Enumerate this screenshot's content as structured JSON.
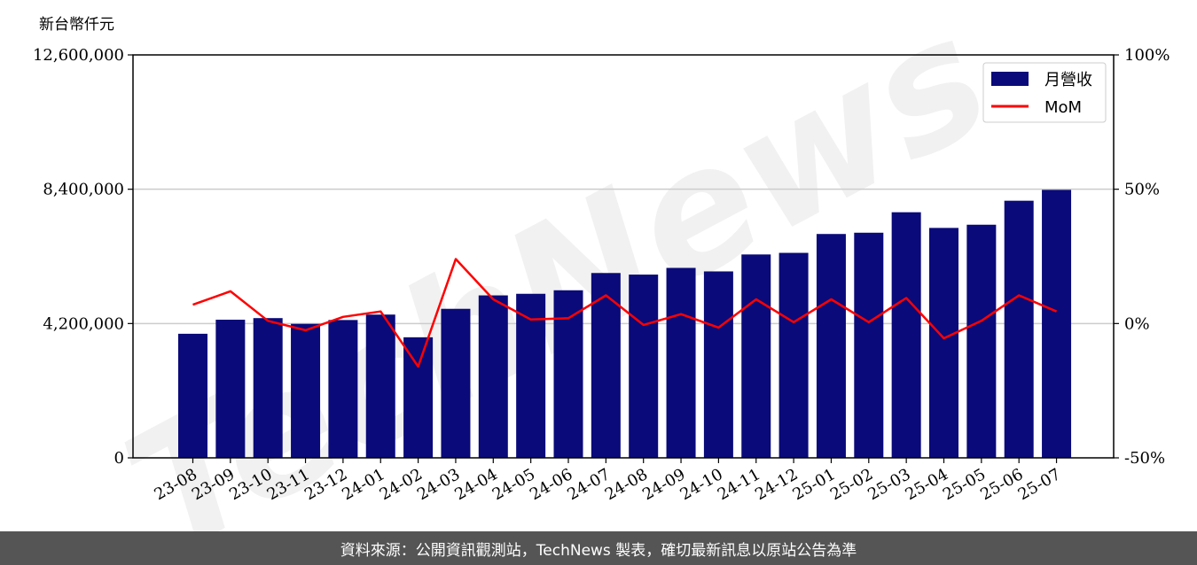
{
  "chart_data": {
    "type": "bar",
    "unit_label": "新台幣仟元",
    "categories": [
      "23-08",
      "23-09",
      "23-10",
      "23-11",
      "23-12",
      "24-01",
      "24-02",
      "24-03",
      "24-04",
      "24-05",
      "24-06",
      "24-07",
      "24-08",
      "24-09",
      "24-10",
      "24-11",
      "24-12",
      "25-01",
      "25-02",
      "25-03",
      "25-04",
      "25-05",
      "25-06",
      "25-07"
    ],
    "series": [
      {
        "name": "月營收",
        "type": "bar",
        "axis": "left",
        "color": "#0a0a7a",
        "values": [
          3880000,
          4320000,
          4370000,
          4190000,
          4310000,
          4480000,
          3770000,
          4660000,
          5080000,
          5130000,
          5240000,
          5780000,
          5730000,
          5940000,
          5830000,
          6360000,
          6410000,
          7000000,
          7040000,
          7680000,
          7190000,
          7290000,
          8040000,
          8380000
        ]
      },
      {
        "name": "MoM",
        "type": "line",
        "axis": "right",
        "color": "#ff0000",
        "values": [
          7,
          12,
          1,
          -2.5,
          2.5,
          4.5,
          -16,
          24,
          9,
          1.5,
          2,
          10.5,
          -0.5,
          3.5,
          -1.5,
          9,
          0.5,
          9,
          0.5,
          9.5,
          -5.5,
          1,
          10.5,
          4.5
        ]
      }
    ],
    "y_left": {
      "ylim": [
        0,
        12600000
      ],
      "ticks": [
        "0",
        "4,200,000",
        "8,400,000",
        "12,600,000"
      ],
      "tick_values": [
        0,
        4200000,
        8400000,
        12600000
      ]
    },
    "y_right": {
      "ylim": [
        -50,
        100
      ],
      "ticks": [
        "-50%",
        "0%",
        "50%",
        "100%"
      ],
      "tick_values": [
        -50,
        0,
        50,
        100
      ]
    },
    "grid": "horizontal",
    "legend": "top-right",
    "watermark": "TechNews"
  },
  "footer": {
    "text": "資料來源：公開資訊觀測站，TechNews 製表，確切最新訊息以原站公告為準"
  }
}
